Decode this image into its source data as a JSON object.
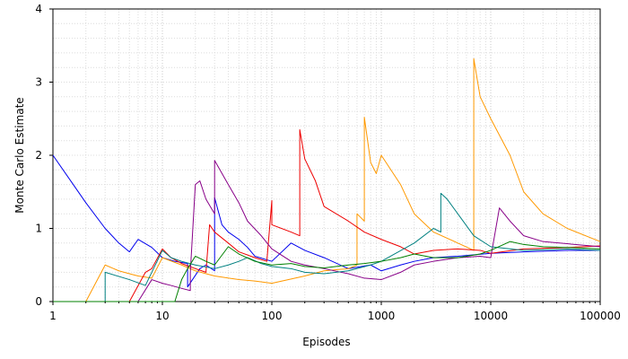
{
  "chart_data": {
    "type": "line",
    "xlabel": "Episodes",
    "ylabel": "Monte Carlo Estimate",
    "xscale": "log",
    "xlim": [
      1,
      100000
    ],
    "ylim": [
      0,
      4
    ],
    "x_ticks": [
      1,
      10,
      100,
      1000,
      10000,
      100000
    ],
    "x_tick_labels": [
      "1",
      "10",
      "100",
      "1000",
      "10000",
      "100000"
    ],
    "y_ticks": [
      0,
      1,
      2,
      3,
      4
    ],
    "y_tick_labels": [
      "0",
      "1",
      "2",
      "3",
      "4"
    ],
    "grid": "on",
    "legend": "none",
    "series": [
      {
        "color": "#0000ee",
        "x": [
          1,
          1.5,
          2,
          3,
          4,
          5,
          6,
          8,
          10,
          13,
          17,
          17,
          22,
          25,
          30,
          30,
          35,
          40,
          50,
          60,
          70,
          100,
          150,
          200,
          300,
          500,
          800,
          1000,
          1500,
          2000,
          3000,
          5000,
          10000,
          20000,
          50000,
          100000
        ],
        "y": [
          2.0,
          1.62,
          1.35,
          1.0,
          0.8,
          0.68,
          0.85,
          0.74,
          0.6,
          0.55,
          0.52,
          0.2,
          0.45,
          0.5,
          0.42,
          1.42,
          1.05,
          0.95,
          0.85,
          0.74,
          0.62,
          0.55,
          0.8,
          0.7,
          0.6,
          0.45,
          0.5,
          0.42,
          0.5,
          0.55,
          0.6,
          0.62,
          0.66,
          0.68,
          0.7,
          0.7
        ]
      },
      {
        "color": "#ff9900",
        "x": [
          1,
          2,
          3,
          4,
          5,
          6,
          8,
          10,
          15,
          20,
          30,
          50,
          70,
          100,
          200,
          300,
          500,
          600,
          600,
          700,
          700,
          800,
          900,
          1000,
          1500,
          2000,
          3000,
          5000,
          7000,
          7000,
          8000,
          10000,
          15000,
          20000,
          30000,
          50000,
          100000
        ],
        "y": [
          0,
          0,
          0.5,
          0.42,
          0.38,
          0.35,
          0.32,
          0.6,
          0.5,
          0.42,
          0.35,
          0.3,
          0.28,
          0.25,
          0.35,
          0.42,
          0.45,
          0.5,
          1.2,
          1.1,
          2.52,
          1.9,
          1.75,
          2.0,
          1.6,
          1.2,
          0.95,
          0.8,
          0.7,
          3.32,
          2.8,
          2.5,
          2.0,
          1.5,
          1.2,
          1.0,
          0.82
        ]
      },
      {
        "color": "#ee0000",
        "x": [
          1,
          4,
          5,
          7,
          8,
          10,
          12,
          15,
          20,
          25,
          27,
          30,
          40,
          50,
          70,
          90,
          100,
          100,
          150,
          180,
          180,
          200,
          250,
          300,
          500,
          700,
          1000,
          1500,
          2000,
          3000,
          5000,
          8000,
          10000,
          20000,
          50000,
          100000
        ],
        "y": [
          0,
          0,
          0,
          0.4,
          0.45,
          0.72,
          0.6,
          0.52,
          0.45,
          0.4,
          1.05,
          0.95,
          0.8,
          0.68,
          0.6,
          0.55,
          1.38,
          1.05,
          0.95,
          0.9,
          2.35,
          1.95,
          1.65,
          1.3,
          1.1,
          0.95,
          0.85,
          0.75,
          0.65,
          0.7,
          0.72,
          0.7,
          0.66,
          0.72,
          0.74,
          0.76
        ]
      },
      {
        "color": "#880088",
        "x": [
          1,
          5,
          6,
          8,
          10,
          12,
          15,
          18,
          18,
          20,
          22,
          25,
          30,
          30,
          40,
          50,
          60,
          80,
          100,
          150,
          200,
          300,
          500,
          700,
          1000,
          1500,
          2000,
          3000,
          5000,
          8000,
          10000,
          12000,
          15000,
          20000,
          30000,
          100000
        ],
        "y": [
          0,
          0,
          0,
          0.3,
          0.25,
          0.22,
          0.18,
          0.15,
          0.4,
          1.6,
          1.65,
          1.4,
          1.2,
          1.93,
          1.6,
          1.35,
          1.1,
          0.9,
          0.72,
          0.55,
          0.5,
          0.45,
          0.38,
          0.32,
          0.3,
          0.4,
          0.5,
          0.55,
          0.6,
          0.62,
          0.6,
          1.28,
          1.1,
          0.9,
          0.82,
          0.75
        ]
      },
      {
        "color": "#008080",
        "x": [
          1,
          3,
          3,
          5,
          7,
          10,
          12,
          15,
          20,
          30,
          40,
          50,
          60,
          80,
          100,
          150,
          200,
          300,
          500,
          800,
          1000,
          2000,
          3000,
          3500,
          3500,
          4000,
          5000,
          7000,
          10000,
          20000,
          50000,
          100000
        ],
        "y": [
          0,
          0,
          0.4,
          0.3,
          0.22,
          0.7,
          0.6,
          0.55,
          0.5,
          0.45,
          0.5,
          0.55,
          0.6,
          0.52,
          0.48,
          0.45,
          0.4,
          0.38,
          0.42,
          0.5,
          0.55,
          0.8,
          1.0,
          0.95,
          1.48,
          1.4,
          1.2,
          0.9,
          0.75,
          0.7,
          0.72,
          0.7
        ]
      },
      {
        "color": "#008000",
        "x": [
          1,
          13,
          15,
          17,
          20,
          25,
          30,
          40,
          50,
          70,
          100,
          150,
          200,
          300,
          500,
          700,
          1000,
          1500,
          2000,
          3000,
          5000,
          8000,
          10000,
          15000,
          20000,
          30000,
          50000,
          100000
        ],
        "y": [
          0,
          0,
          0.3,
          0.45,
          0.62,
          0.55,
          0.5,
          0.75,
          0.65,
          0.55,
          0.5,
          0.52,
          0.48,
          0.46,
          0.5,
          0.52,
          0.55,
          0.6,
          0.65,
          0.6,
          0.6,
          0.65,
          0.7,
          0.82,
          0.78,
          0.75,
          0.74,
          0.72
        ]
      }
    ]
  }
}
